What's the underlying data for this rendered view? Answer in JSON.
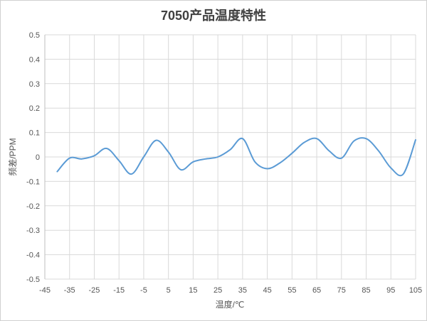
{
  "chart_data": {
    "type": "line",
    "title": "7050产品温度特性",
    "xlabel": "温度/℃",
    "ylabel": "频差/PPM",
    "xlim": [
      -45,
      105
    ],
    "ylim": [
      -0.5,
      0.5
    ],
    "xticks": [
      "-45",
      "-35",
      "-25",
      "-15",
      "-5",
      "5",
      "15",
      "25",
      "35",
      "45",
      "55",
      "65",
      "75",
      "85",
      "95",
      "105"
    ],
    "yticks": [
      "0.5",
      "0.4",
      "0.3",
      "0.2",
      "0.1",
      "0",
      "-0.1",
      "-0.2",
      "-0.3",
      "-0.4",
      "-0.5"
    ],
    "grid": true,
    "legend": "none",
    "colors": {
      "line": "#5b9bd5",
      "grid": "#d9d9d9"
    },
    "series": [
      {
        "x": [
          -40,
          -35,
          -30,
          -25,
          -20,
          -15,
          -10,
          -5,
          0,
          5,
          10,
          15,
          20,
          25,
          30,
          35,
          40,
          45,
          50,
          55,
          60,
          65,
          70,
          75,
          80,
          85,
          90,
          95,
          100,
          105
        ],
        "values": [
          -0.06,
          -0.005,
          -0.008,
          0.005,
          0.035,
          -0.015,
          -0.07,
          0.0,
          0.068,
          0.02,
          -0.052,
          -0.02,
          -0.008,
          0.0,
          0.03,
          0.075,
          -0.02,
          -0.048,
          -0.025,
          0.015,
          0.06,
          0.075,
          0.025,
          -0.005,
          0.065,
          0.075,
          0.025,
          -0.045,
          -0.07,
          0.07
        ]
      }
    ]
  }
}
